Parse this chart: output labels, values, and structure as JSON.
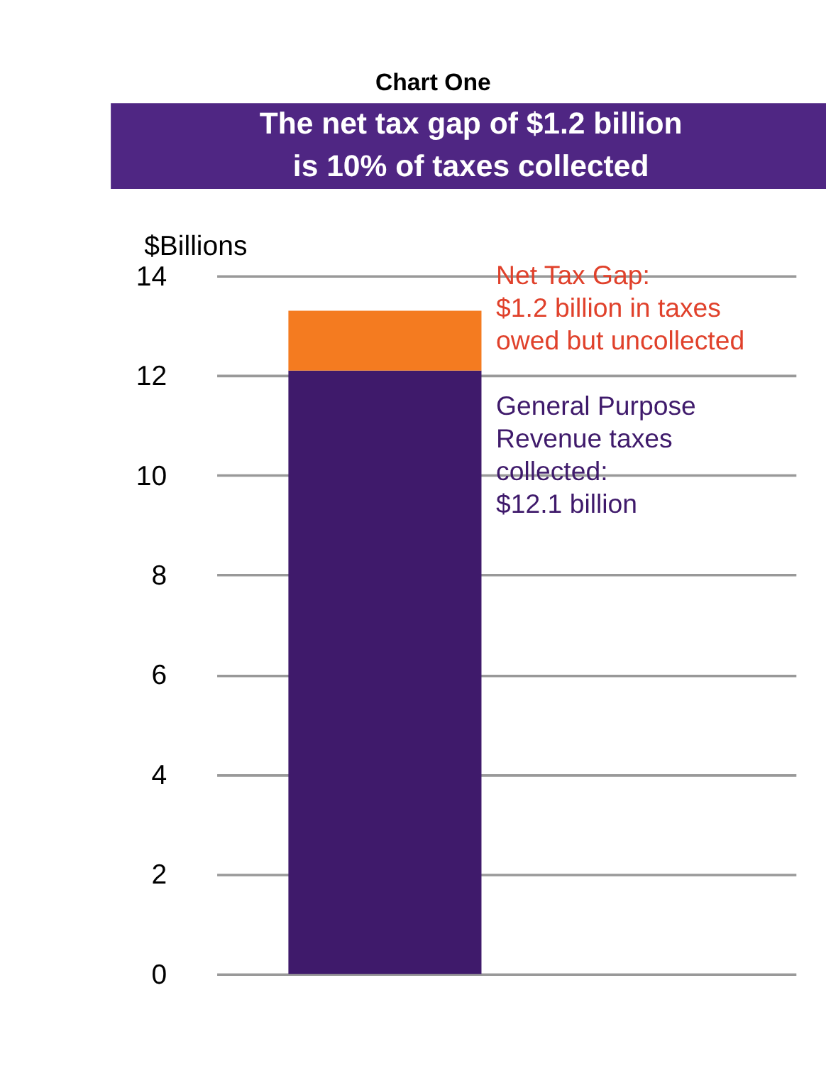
{
  "chart_data": {
    "type": "bar",
    "title": "Chart One",
    "subtitle": "The net tax gap of $1.2 billion\nis 10% of taxes collected",
    "ylabel": "$Billions",
    "categories": [
      null
    ],
    "stacked": true,
    "series": [
      {
        "color": "#3f1a6b",
        "values": [
          12.1
        ]
      },
      {
        "color": "#f47b20",
        "values": [
          1.2
        ]
      }
    ],
    "annotations": [
      "General Purpose\nRevenue taxes\ncollected:\n$12.1 billion",
      "Net Tax Gap:\n$1.2 billion in taxes\nowed but uncollected"
    ],
    "ylim": [
      0,
      14
    ],
    "yticks": [
      0,
      2,
      4,
      6,
      8,
      10,
      12,
      14
    ],
    "grid": "y",
    "tick_labels": "y"
  }
}
